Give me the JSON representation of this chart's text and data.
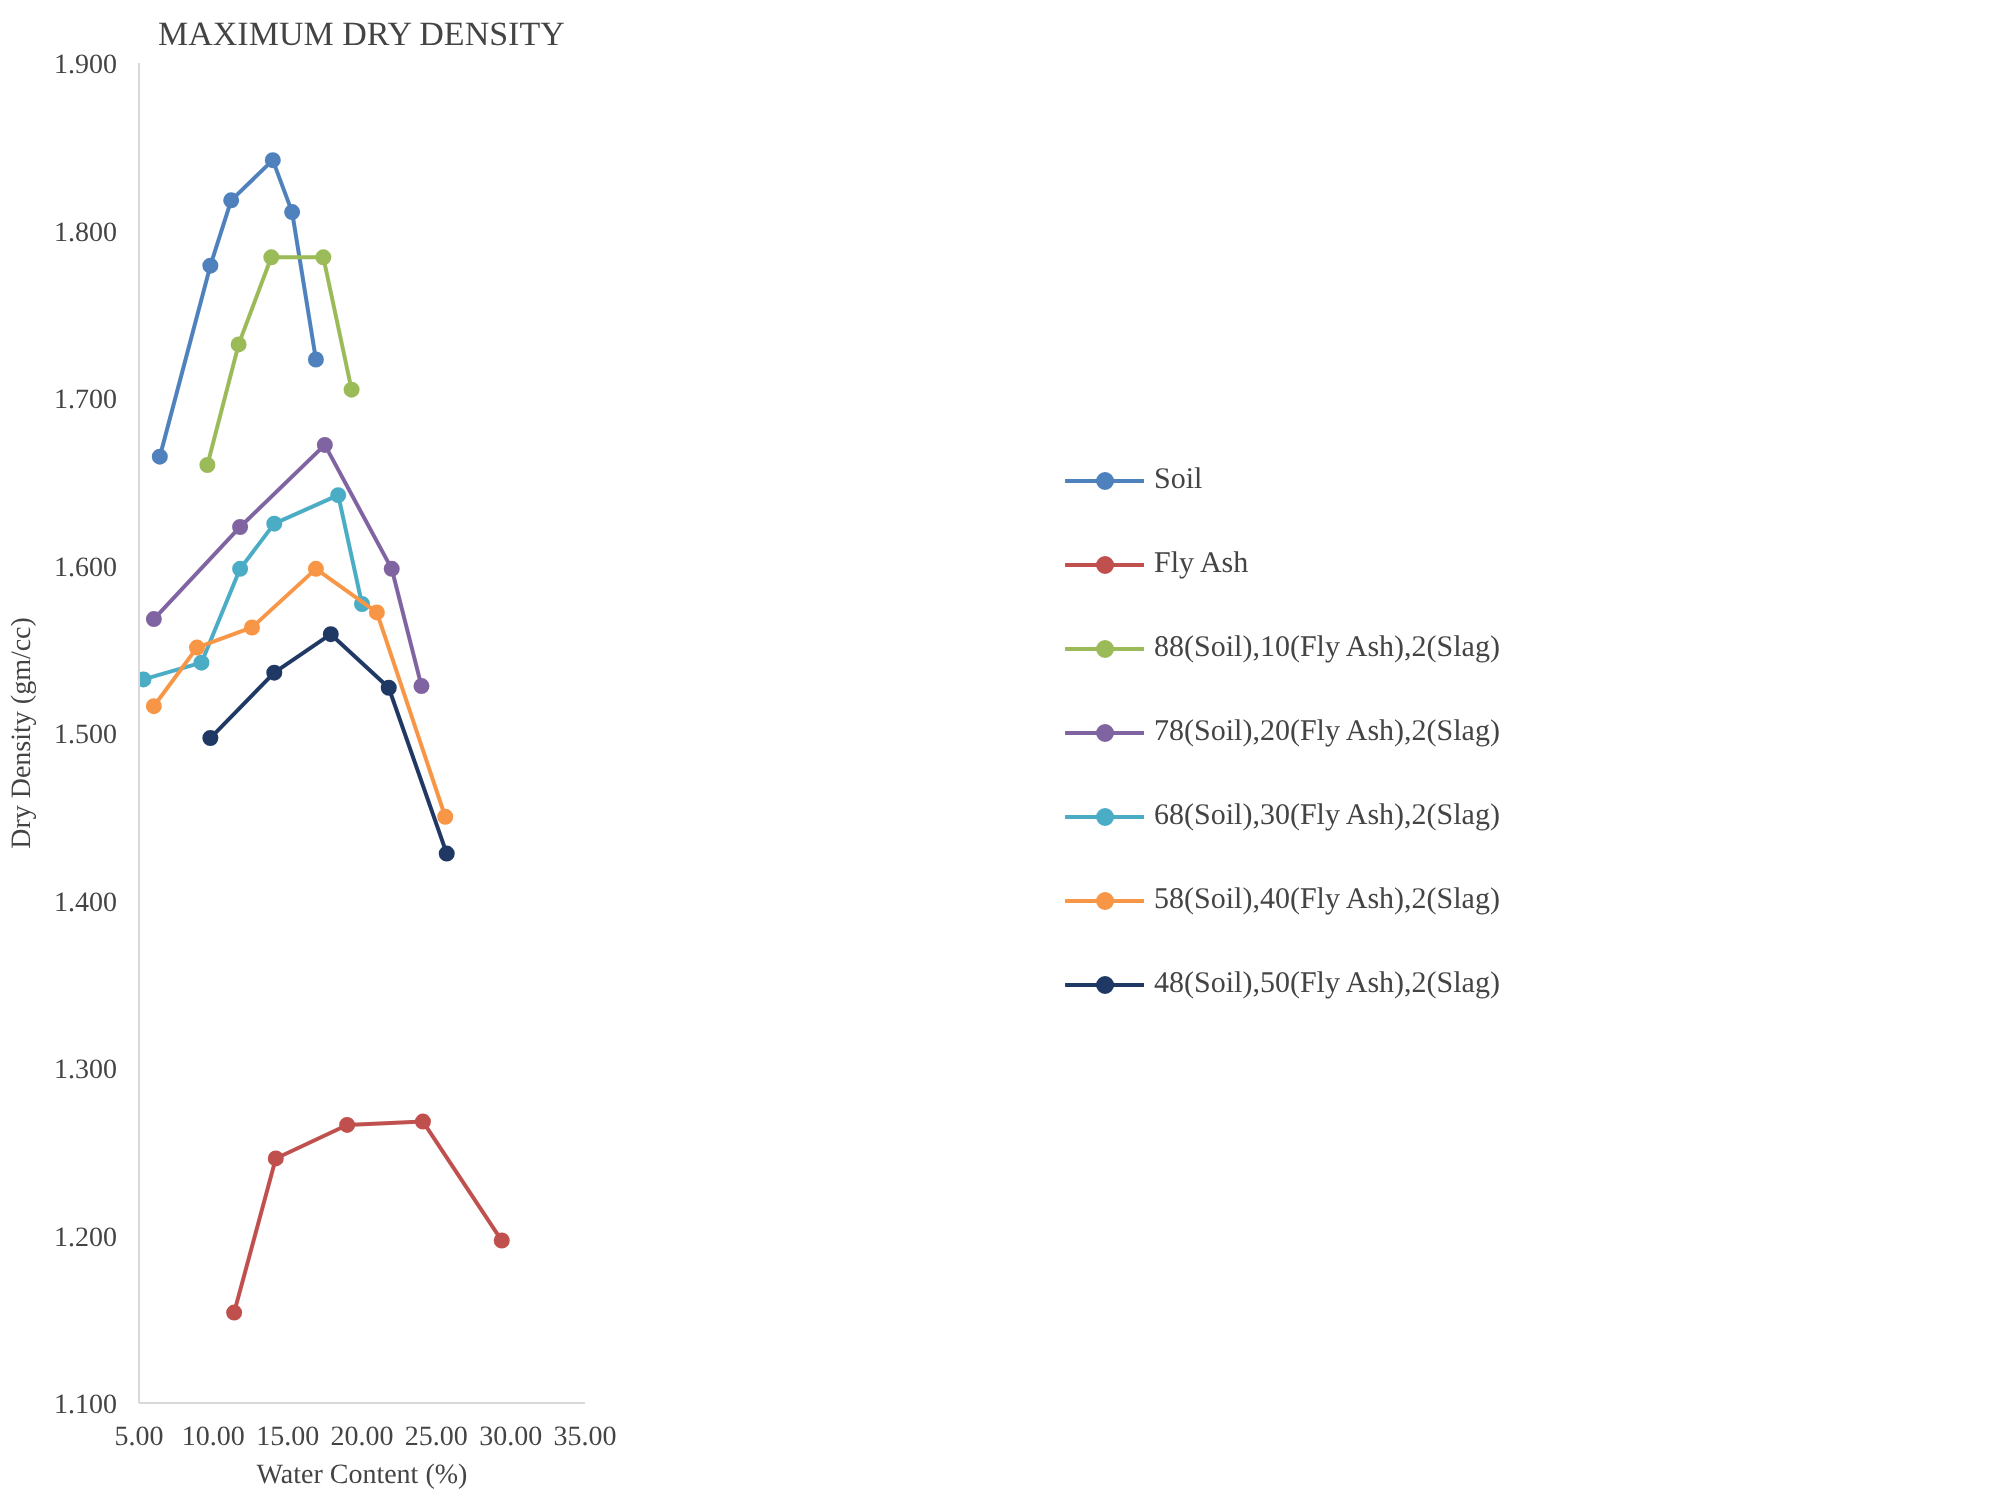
{
  "chart_data": {
    "type": "line",
    "title": "MAXIMUM DRY DENSITY",
    "xlabel": "Water Content (%)",
    "ylabel": "Dry Density (gm/cc)",
    "xlim": [
      5,
      35
    ],
    "xticks": [
      {
        "value": 5,
        "label": "5.00"
      },
      {
        "value": 10,
        "label": "10.00"
      },
      {
        "value": 15,
        "label": "15.00"
      },
      {
        "value": 20,
        "label": "20.00"
      },
      {
        "value": 25,
        "label": "25.00"
      },
      {
        "value": 30,
        "label": "30.00"
      },
      {
        "value": 35,
        "label": "35.00"
      }
    ],
    "ylim": [
      1.1,
      1.9
    ],
    "yticks": [
      {
        "value": 1.1,
        "label": "1.100"
      },
      {
        "value": 1.2,
        "label": "1.200"
      },
      {
        "value": 1.3,
        "label": "1.300"
      },
      {
        "value": 1.4,
        "label": "1.400"
      },
      {
        "value": 1.5,
        "label": "1.500"
      },
      {
        "value": 1.6,
        "label": "1.600"
      },
      {
        "value": 1.7,
        "label": "1.700"
      },
      {
        "value": 1.8,
        "label": "1.800"
      },
      {
        "value": 1.9,
        "label": "1.900"
      }
    ],
    "grid": false,
    "legend": "right",
    "marker": "circle",
    "line_style": "solid",
    "series": [
      {
        "name": "Soil",
        "color": "#4f81bd",
        "x": [
          6.4,
          9.8,
          11.2,
          14.0,
          15.3,
          16.9
        ],
        "values": [
          1.665,
          1.779,
          1.818,
          1.842,
          1.811,
          1.723
        ]
      },
      {
        "name": "Fly Ash",
        "color": "#c0504d",
        "x": [
          11.4,
          14.2,
          19.0,
          24.1,
          29.4
        ],
        "values": [
          1.154,
          1.246,
          1.266,
          1.268,
          1.197
        ]
      },
      {
        "name": "88(Soil),10(Fly Ash),2(Slag)",
        "color": "#9bbb59",
        "x": [
          9.6,
          11.7,
          13.9,
          17.4,
          19.3
        ],
        "values": [
          1.66,
          1.732,
          1.784,
          1.784,
          1.705
        ]
      },
      {
        "name": "78(Soil),20(Fly Ash),2(Slag)",
        "color": "#8064a2",
        "x": [
          6.0,
          11.8,
          17.5,
          22.0,
          24.0
        ],
        "values": [
          1.568,
          1.623,
          1.672,
          1.598,
          1.528
        ]
      },
      {
        "name": "68(Soil),30(Fly Ash),2(Slag)",
        "color": "#4bacc6",
        "x": [
          5.3,
          9.2,
          11.8,
          14.1,
          18.4,
          20.0
        ],
        "values": [
          1.532,
          1.542,
          1.598,
          1.625,
          1.642,
          1.577
        ]
      },
      {
        "name": "58(Soil),40(Fly Ash),2(Slag)",
        "color": "#f79646",
        "x": [
          6.0,
          8.9,
          12.6,
          16.9,
          21.0,
          25.6
        ],
        "values": [
          1.516,
          1.551,
          1.563,
          1.598,
          1.572,
          1.45
        ]
      },
      {
        "name": "48(Soil),50(Fly Ash),2(Slag)",
        "color": "#1f3864",
        "x": [
          9.8,
          14.1,
          17.9,
          21.8,
          25.7
        ],
        "values": [
          1.497,
          1.536,
          1.559,
          1.527,
          1.428
        ]
      }
    ]
  }
}
